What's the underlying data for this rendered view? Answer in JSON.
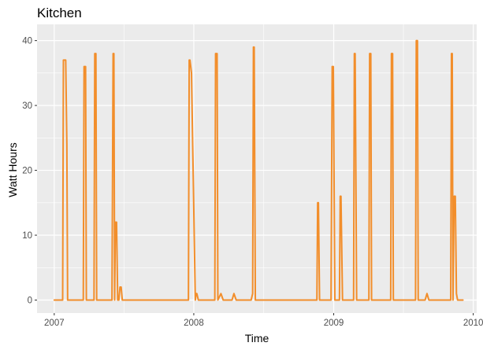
{
  "chart_data": {
    "type": "line",
    "title": "Kitchen",
    "xlabel": "Time",
    "ylabel": "Watt Hours",
    "xlim": [
      "2006-11-17",
      "2010-01-10"
    ],
    "ylim": [
      -2,
      42.5
    ],
    "x_ticks": [
      "2007",
      "2008",
      "2009",
      "2010"
    ],
    "x_tick_dates": [
      "2007-01-01",
      "2008-01-01",
      "2009-01-01",
      "2010-01-01"
    ],
    "y_ticks": [
      0,
      10,
      20,
      30,
      40
    ],
    "grid": true,
    "legend": "none",
    "series": [
      {
        "color": "#F28E2B",
        "x": [
          "2007-01-01",
          "2007-01-23",
          "2007-01-25",
          "2007-01-28",
          "2007-01-31",
          "2007-02-03",
          "2007-02-05",
          "2007-02-08",
          "2007-02-10",
          "2007-02-12",
          "2007-02-15",
          "2007-03-18",
          "2007-03-20",
          "2007-03-24",
          "2007-03-26",
          "2007-04-15",
          "2007-04-17",
          "2007-04-20",
          "2007-04-22",
          "2007-06-01",
          "2007-06-04",
          "2007-06-06",
          "2007-06-08",
          "2007-06-10",
          "2007-06-13",
          "2007-06-16",
          "2007-06-19",
          "2007-06-22",
          "2007-06-25",
          "2007-06-28",
          "2007-07-02",
          "2007-07-05",
          "2007-07-07",
          "2007-07-10",
          "2007-12-18",
          "2007-12-20",
          "2007-12-22",
          "2007-12-24",
          "2007-12-26",
          "2008-01-05",
          "2008-01-07",
          "2008-01-09",
          "2008-01-13",
          "2008-01-17",
          "2008-01-22",
          "2008-02-25",
          "2008-02-27",
          "2008-03-02",
          "2008-03-04",
          "2008-03-12",
          "2008-03-18",
          "2008-04-10",
          "2008-04-15",
          "2008-04-21",
          "2008-05-30",
          "2008-06-03",
          "2008-06-05",
          "2008-06-07",
          "2008-06-10",
          "2008-11-18",
          "2008-11-20",
          "2008-11-22",
          "2008-11-25",
          "2008-12-25",
          "2008-12-28",
          "2008-12-31",
          "2009-01-04",
          "2009-01-16",
          "2009-01-18",
          "2009-01-20",
          "2009-01-24",
          "2009-02-22",
          "2009-02-24",
          "2009-02-26",
          "2009-03-02",
          "2009-04-03",
          "2009-04-05",
          "2009-04-08",
          "2009-04-10",
          "2009-05-30",
          "2009-06-01",
          "2009-06-04",
          "2009-06-06",
          "2009-08-03",
          "2009-08-05",
          "2009-08-08",
          "2009-08-10",
          "2009-08-28",
          "2009-09-02",
          "2009-09-07",
          "2009-11-03",
          "2009-11-05",
          "2009-11-07",
          "2009-11-09",
          "2009-11-12",
          "2009-11-15",
          "2009-11-18",
          "2009-11-21",
          "2009-11-25",
          "2009-12-05"
        ],
        "y": [
          0,
          0,
          37,
          37,
          37,
          24,
          0,
          0,
          0,
          0,
          0,
          0,
          36,
          36,
          0,
          0,
          38,
          38,
          0,
          0,
          38,
          38,
          0,
          12,
          12,
          0,
          0,
          2,
          2,
          0,
          0,
          0,
          0,
          0,
          0,
          37,
          37,
          36,
          35,
          0,
          1,
          1,
          0,
          0,
          0,
          0,
          38,
          38,
          0,
          1,
          0,
          0,
          1,
          0,
          0,
          1,
          39,
          39,
          0,
          0,
          15,
          15,
          0,
          0,
          36,
          36,
          0,
          0,
          16,
          16,
          0,
          0,
          38,
          38,
          0,
          0,
          38,
          38,
          0,
          0,
          38,
          38,
          0,
          0,
          40,
          40,
          0,
          0,
          1,
          0,
          0,
          38,
          38,
          0,
          16,
          16,
          1,
          0,
          0,
          0
        ]
      }
    ]
  }
}
